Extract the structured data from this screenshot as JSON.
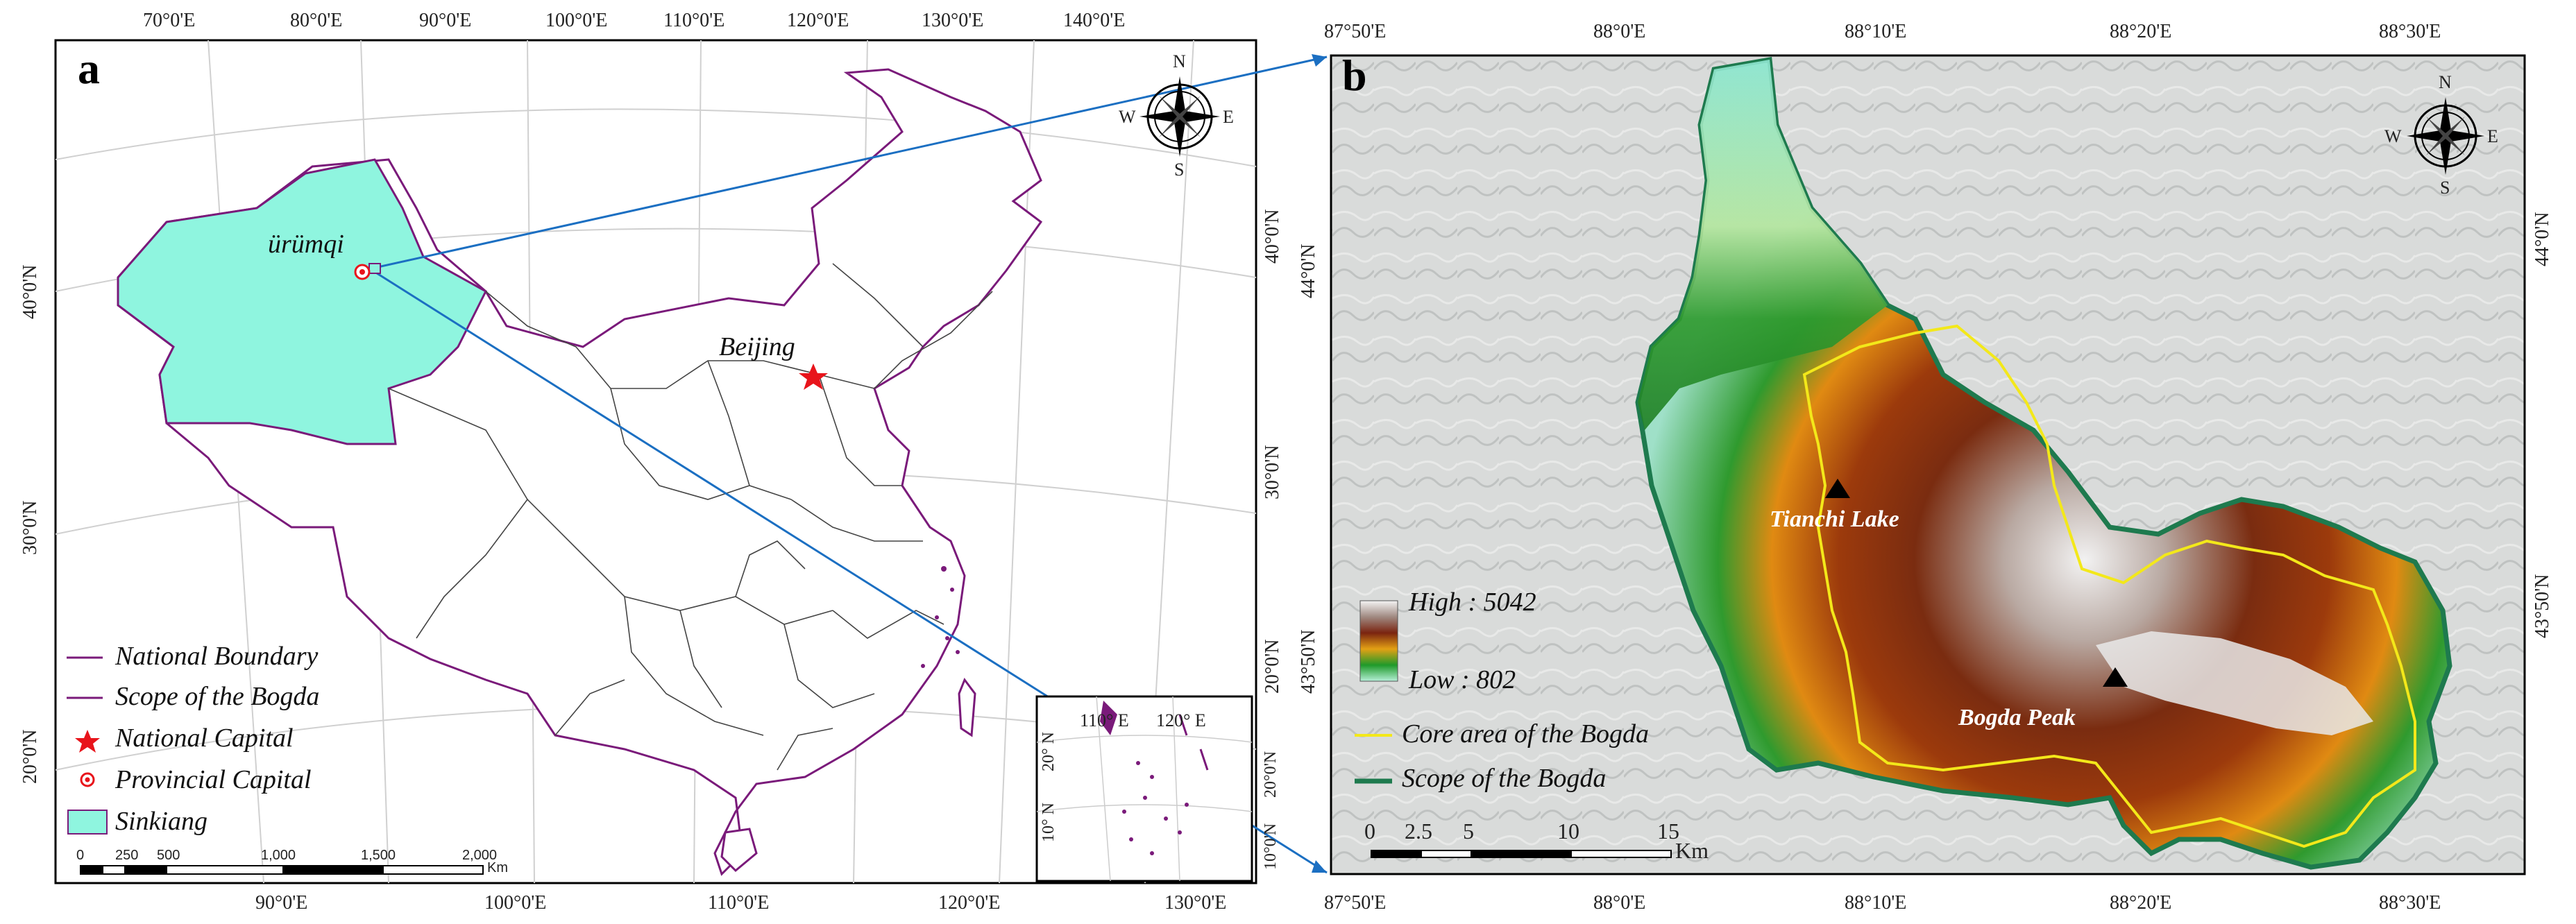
{
  "panel_a": {
    "letter": "a",
    "top_ticks": [
      "70°0'E",
      "80°0'E",
      "90°0'E",
      "100°0'E",
      "110°0'E",
      "120°0'E",
      "130°0'E",
      "140°0'E"
    ],
    "bottom_ticks": [
      "90°0'E",
      "100°0'E",
      "110°0'E",
      "120°0'E",
      "130°0'E"
    ],
    "left_ticks": [
      "40°0'N",
      "30°0'N",
      "20°0'N"
    ],
    "right_ticks": [
      "40°0'N",
      "30°0'N",
      "20°0'N"
    ],
    "city_urumqi": "ürümqi",
    "city_beijing": "Beijing",
    "compass": {
      "n": "N",
      "s": "S",
      "e": "E",
      "w": "W"
    },
    "legend": {
      "national_boundary": "National Boundary",
      "scope_bogda": "Scope of the Bogda",
      "national_capital": "National Capital",
      "provincial_capital": "Provincial Capital",
      "sinkiang": "Sinkiang"
    },
    "scalebar": {
      "labels": [
        "0",
        "250",
        "500",
        "1,000",
        "1,500",
        "2,000"
      ],
      "unit": "Km"
    },
    "inset": {
      "top_ticks": [
        "110° E",
        "120° E"
      ],
      "left_ticks": [
        "20° N",
        "10° N"
      ],
      "right_ticks": [
        "20°0'N",
        "10°0'N"
      ]
    },
    "colors": {
      "sinkiang": "#8ff5df",
      "boundary": "#7a1a7a",
      "capital": "#e8141b"
    }
  },
  "panel_b": {
    "letter": "b",
    "top_ticks": [
      "87°50'E",
      "88°0'E",
      "88°10'E",
      "88°20'E",
      "88°30'E"
    ],
    "bottom_ticks": [
      "87°50'E",
      "88°0'E",
      "88°10'E",
      "88°20'E",
      "88°30'E"
    ],
    "right_ticks": [
      "44°0'N",
      "43°50'N"
    ],
    "left_ticks": [
      "44°0'N",
      "43°50'N"
    ],
    "tianchi": "Tianchi Lake",
    "bogda_peak": "Bogda Peak",
    "compass": {
      "n": "N",
      "s": "S",
      "e": "E",
      "w": "W"
    },
    "elevation": {
      "high": "High : 5042",
      "low": "Low : 802"
    },
    "legend": {
      "core": "Core area of the Bogda",
      "scope": "Scope of the Bogda"
    },
    "scalebar": {
      "labels": [
        "0",
        "2.5",
        "5",
        "10",
        "15"
      ],
      "unit": "Km"
    },
    "colors": {
      "core": "#f3e81a",
      "scope": "#1e7a4e"
    }
  }
}
